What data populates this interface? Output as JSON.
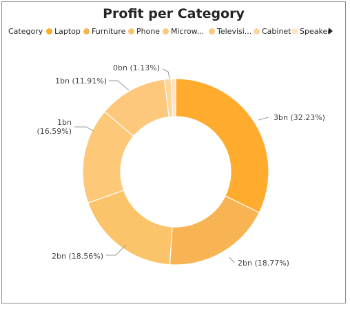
{
  "colors": {
    "Laptop": "#ffab2e",
    "Furniture": "#f8b452",
    "Phone": "#fcc46a",
    "Microwave": "#fdc877",
    "Television": "#fec87c",
    "Cabinet": "#ffd59a",
    "Speaker": "#ffe3c2"
  },
  "legend": {
    "title": "Category",
    "items": [
      "Laptop",
      "Furniture",
      "Phone",
      "Microw...",
      "Televisi...",
      "Cabinet",
      "Speaker"
    ],
    "more_icon": "chevron-right-icon"
  },
  "chart_data": {
    "type": "pie",
    "variant": "donut",
    "title": "Profit per Category",
    "slices": [
      {
        "category": "Laptop",
        "percent": 32.23,
        "label": "3bn (32.23%)"
      },
      {
        "category": "Furniture",
        "percent": 18.77,
        "label": "2bn (18.77%)"
      },
      {
        "category": "Phone",
        "percent": 18.56,
        "label": "2bn (18.56%)"
      },
      {
        "category": "Microwave",
        "percent": 16.59,
        "label": "1bn (16.59%)"
      },
      {
        "category": "Television",
        "percent": 11.91,
        "label": "1bn (11.91%)"
      },
      {
        "category": "Cabinet",
        "percent": 1.13,
        "label": "0bn (1.13%)"
      },
      {
        "category": "Speaker",
        "percent": 0.81,
        "label": ""
      }
    ]
  }
}
